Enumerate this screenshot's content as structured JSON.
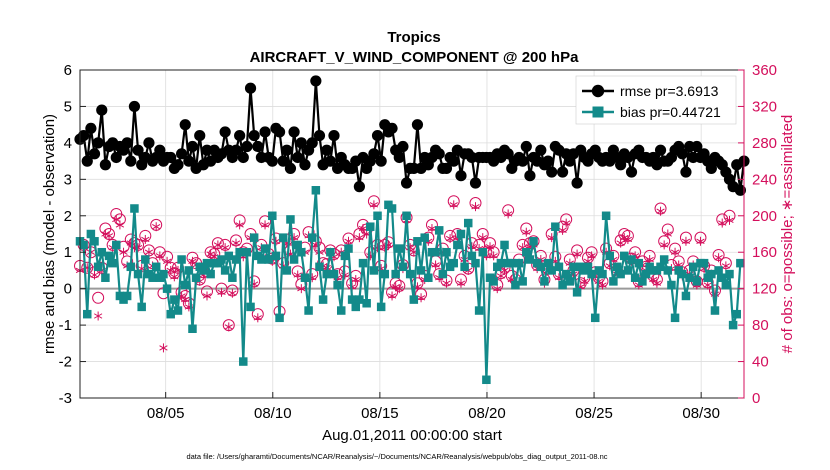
{
  "colors": {
    "rmse": "#000000",
    "bias": "#138a8a",
    "obs": "#d40f5c",
    "zero_line": "#9a9a9a",
    "grid": "#dddddd",
    "axis": "#222222"
  },
  "chart_data": {
    "type": "line",
    "title": "Tropics",
    "subtitle": "AIRCRAFT_V_WIND_COMPONENT @ 200 hPa",
    "xlabel": "Aug.01,2011 00:00:00 start",
    "ylabel_left": "rmse and bias (model - observation)",
    "ylabel_right": "# of obs: o=possible; ∗=assimilated",
    "footnote": "data file: /Users/gharamti/Documents/NCAR/Reanalysis/~/Documents/NCAR/Reanalysis/webpub/obs_diag_output_2011-08.nc",
    "x_tick_labels": [
      "08/05",
      "08/10",
      "08/15",
      "08/20",
      "08/25",
      "08/30"
    ],
    "x_tick_days": [
      5,
      10,
      15,
      20,
      25,
      30
    ],
    "xlim": [
      1.0,
      32.0
    ],
    "ylim_left": [
      -3,
      6
    ],
    "y_ticks_left": [
      -3,
      -2,
      -1,
      0,
      1,
      2,
      3,
      4,
      5,
      6
    ],
    "ylim_right": [
      0,
      360
    ],
    "y_ticks_right": [
      0,
      40,
      80,
      120,
      160,
      200,
      240,
      280,
      320,
      360
    ],
    "grid": true,
    "legend_position": "top-right",
    "series": [
      {
        "name": "rmse pr=3.6913",
        "axis": "left",
        "marker": "filled-circle",
        "values": [
          4.1,
          4.2,
          3.5,
          4.4,
          3.7,
          4.0,
          4.9,
          3.4,
          3.9,
          4.0,
          3.6,
          3.9,
          3.8,
          4.0,
          3.5,
          5.0,
          3.8,
          3.4,
          3.6,
          4.0,
          3.5,
          3.6,
          3.8,
          3.5,
          3.6,
          3.6,
          3.3,
          3.4,
          3.7,
          4.5,
          3.5,
          3.9,
          3.3,
          4.2,
          3.4,
          3.8,
          3.5,
          3.8,
          3.6,
          3.7,
          4.3,
          3.8,
          3.6,
          3.8,
          4.2,
          3.6,
          3.9,
          5.5,
          4.2,
          3.9,
          3.6,
          4.3,
          3.6,
          3.5,
          4.4,
          4.3,
          3.5,
          3.8,
          3.3,
          4.3,
          3.6,
          4.0,
          3.4,
          3.8,
          4.0,
          5.7,
          4.2,
          3.4,
          3.8,
          3.5,
          4.2,
          3.3,
          3.6,
          3.4,
          3.3,
          3.3,
          3.5,
          2.8,
          3.6,
          3.3,
          3.5,
          3.7,
          4.2,
          3.5,
          4.5,
          4.3,
          4.4,
          3.8,
          3.6,
          3.9,
          2.9,
          3.3,
          3.3,
          4.5,
          3.3,
          3.6,
          3.4,
          3.6,
          3.8,
          3.7,
          3.3,
          3.3,
          3.6,
          3.5,
          3.8,
          3.1,
          3.7,
          3.7,
          3.6,
          2.9,
          3.6,
          3.6,
          3.6,
          3.6,
          3.5,
          3.7,
          3.6,
          3.8,
          3.7,
          3.3,
          3.5,
          3.6,
          3.5,
          3.9,
          3.1,
          3.6,
          3.5,
          3.8,
          3.4,
          3.5,
          3.2,
          3.9,
          3.8,
          3.2,
          3.7,
          3.5,
          3.7,
          2.9,
          3.8,
          3.6,
          3.5,
          3.7,
          3.8,
          3.6,
          3.5,
          3.6,
          3.5,
          3.8,
          3.6,
          3.4,
          3.7,
          3.6,
          3.2,
          3.7,
          3.8,
          3.6,
          3.6,
          3.5,
          3.6,
          3.4,
          3.8,
          3.5,
          3.5,
          3.6,
          3.8,
          3.9,
          3.7,
          3.2,
          3.9,
          3.6,
          3.9,
          3.6,
          3.7,
          3.5,
          3.3,
          3.6,
          3.5,
          3.4,
          3.2,
          3.0,
          2.8,
          3.4,
          2.7,
          3.5
        ]
      },
      {
        "name": "bias pr=0.44721",
        "axis": "left",
        "marker": "filled-square",
        "values": [
          1.3,
          1.2,
          -0.7,
          1.5,
          1.3,
          0.6,
          1.0,
          0.3,
          0.9,
          0.7,
          1.2,
          -0.2,
          -0.3,
          -0.2,
          0.6,
          2.2,
          0.4,
          -0.5,
          0.8,
          0.4,
          0.3,
          0.6,
          0.3,
          0.4,
          0.0,
          -0.7,
          -0.3,
          -0.6,
          0.8,
          0.1,
          0.5,
          -1.1,
          0.3,
          0.6,
          0.5,
          0.7,
          0.4,
          0.7,
          0.7,
          0.8,
          0.5,
          0.9,
          0.3,
          0.8,
          1.0,
          -2.0,
          1.0,
          -0.5,
          1.4,
          0.9,
          0.8,
          1.1,
          0.8,
          2.0,
          0.9,
          -0.8,
          1.4,
          0.5,
          1.9,
          0.8,
          1.2,
          1.0,
          0.3,
          -0.6,
          1.4,
          2.7,
          0.6,
          -0.3,
          0.4,
          1.0,
          0.4,
          0.1,
          -0.6,
          0.9,
          1.1,
          -0.3,
          -0.5,
          -0.3,
          0.7,
          -0.4,
          1.7,
          0.5,
          2.0,
          -0.5,
          0.4,
          2.3,
          2.2,
          0.4,
          1.1,
          0.6,
          2.0,
          0.4,
          -0.3,
          1.3,
          0.5,
          1.4,
          0.3,
          1.0,
          1.0,
          1.6,
          0.4,
          1.0,
          0.6,
          0.7,
          1.2,
          1.5,
          0.6,
          1.8,
          0.9,
          0.7,
          -0.6,
          1.0,
          -2.5,
          0.3,
          0.2,
          0.6,
          0.7,
          1.2,
          0.7,
          0.7,
          0.1,
          0.7,
          0.2,
          1.0,
          0.8,
          1.3,
          0.7,
          0.6,
          0.2,
          0.7,
          0.5,
          1.7,
          0.6,
          0.1,
          0.4,
          0.2,
          0.6,
          -0.1,
          0.6,
          0.5,
          0.6,
          0.4,
          -0.8,
          0.5,
          0.4,
          2.0,
          0.9,
          0.2,
          0.6,
          0.4,
          0.9,
          0.5,
          0.8,
          0.3,
          0.7,
          0.2,
          0.4,
          0.6,
          0.5,
          0.5,
          0.6,
          0.8,
          0.5,
          0.1,
          -0.8,
          0.5,
          0.4,
          -0.2,
          0.3,
          0.6,
          0.2,
          0.7,
          0.7,
          0.3,
          0.4,
          -0.6,
          0.5,
          0.3,
          0.1,
          0.4,
          -1.0,
          -0.7,
          0.7
        ]
      },
      {
        "name": "obs possible",
        "axis": "right",
        "marker": "open-circle",
        "values": [
          145,
          168,
          143,
          160,
          138,
          110,
          143,
          186,
          180,
          168,
          202,
          196,
          166,
          150,
          174,
          170,
          168,
          145,
          178,
          162,
          148,
          190,
          160,
          115,
          155,
          143,
          137,
          143,
          116,
          112,
          104,
          154,
          148,
          130,
          138,
          117,
          160,
          158,
          170,
          120,
          168,
          80,
          118,
          173,
          195,
          160,
          164,
          180,
          128,
          92,
          168,
          194,
          158,
          153,
          175,
          95,
          148,
          174,
          162,
          180,
          139,
          125,
          165,
          182,
          136,
          172,
          165,
          148,
          147,
          162,
          158,
          136,
          162,
          139,
          175,
          126,
          134,
          180,
          190,
          185,
          160,
          216,
          168,
          145,
          168,
          171,
          116,
          126,
          123,
          146,
          198,
          168,
          162,
          126,
          114,
          134,
          176,
          190,
          150,
          136,
          164,
          129,
          178,
          216,
          180,
          130,
          156,
          142,
          170,
          214,
          168,
          180,
          160,
          170,
          160,
          124,
          137,
          143,
          206,
          134,
          130,
          152,
          168,
          186,
          170,
          172,
          146,
          156,
          130,
          142,
          180,
          155,
          136,
          188,
          196,
          152,
          140,
          162,
          126,
          132,
          154,
          160,
          138,
          132,
          128,
          164,
          148,
          156,
          140,
          173,
          180,
          178,
          153,
          160,
          128,
          150,
          144,
          156,
          134,
          130,
          208,
          172,
          185,
          146,
          164,
          150,
          138,
          176,
          140,
          150,
          128,
          176,
          145,
          127,
          140,
          118,
          157,
          196,
          148,
          200
        ]
      },
      {
        "name": "obs assimilated",
        "axis": "right",
        "marker": "asterisk",
        "values": [
          140,
          168,
          143,
          160,
          135,
          90,
          140,
          180,
          178,
          165,
          196,
          190,
          160,
          145,
          170,
          165,
          165,
          142,
          174,
          160,
          145,
          188,
          156,
          55,
          150,
          140,
          133,
          140,
          112,
          108,
          100,
          150,
          146,
          128,
          135,
          112,
          158,
          155,
          168,
          116,
          165,
          78,
          115,
          170,
          190,
          155,
          160,
          176,
          125,
          88,
          165,
          190,
          155,
          150,
          172,
          90,
          145,
          170,
          158,
          176,
          135,
          120,
          160,
          178,
          132,
          168,
          160,
          145,
          143,
          160,
          155,
          132,
          160,
          135,
          172,
          122,
          130,
          176,
          186,
          180,
          156,
          212,
          165,
          142,
          165,
          168,
          112,
          122,
          120,
          142,
          195,
          165,
          160,
          122,
          110,
          130,
          172,
          186,
          146,
          132,
          160,
          126,
          175,
          212,
          176,
          126,
          152,
          140,
          166,
          210,
          164,
          176,
          156,
          166,
          156,
          120,
          134,
          140,
          202,
          130,
          126,
          148,
          165,
          182,
          166,
          168,
          142,
          152,
          126,
          140,
          176,
          150,
          132,
          184,
          192,
          148,
          136,
          158,
          122,
          128,
          150,
          156,
          134,
          128,
          124,
          160,
          145,
          152,
          136,
          170,
          176,
          174,
          150,
          156,
          124,
          146,
          140,
          152,
          130,
          126,
          205,
          168,
          180,
          142,
          160,
          146,
          134,
          172,
          136,
          146,
          124,
          172,
          142,
          124,
          136,
          114,
          154,
          192,
          145,
          195
        ]
      }
    ]
  }
}
